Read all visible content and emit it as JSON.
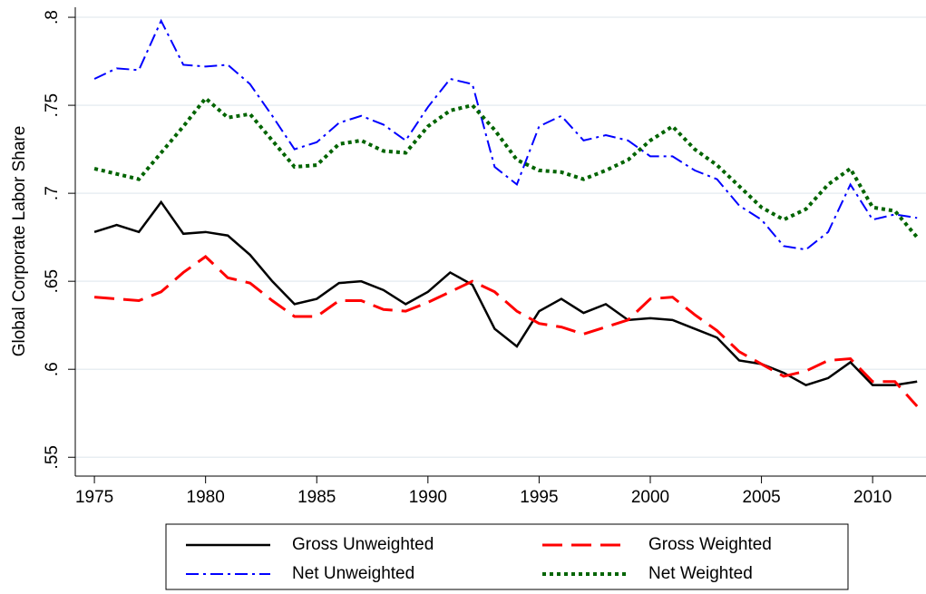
{
  "chart_data": {
    "type": "line",
    "y_label": "Global Corporate Labor Share",
    "x": [
      1975,
      1976,
      1977,
      1978,
      1979,
      1980,
      1981,
      1982,
      1983,
      1984,
      1985,
      1986,
      1987,
      1988,
      1989,
      1990,
      1991,
      1992,
      1993,
      1994,
      1995,
      1996,
      1997,
      1998,
      1999,
      2000,
      2001,
      2002,
      2003,
      2004,
      2005,
      2006,
      2007,
      2008,
      2009,
      2010,
      2011,
      2012
    ],
    "xlim": [
      1974.14,
      2012.4
    ],
    "xticks": [
      1975,
      1980,
      1985,
      1990,
      1995,
      2000,
      2005,
      2010
    ],
    "ylim": [
      0.5393,
      0.8057
    ],
    "yticks": [
      {
        "value": 0.55,
        "label": ".55"
      },
      {
        "value": 0.6,
        "label": ".6"
      },
      {
        "value": 0.65,
        "label": ".65"
      },
      {
        "value": 0.7,
        "label": ".7"
      },
      {
        "value": 0.75,
        "label": ".75"
      },
      {
        "value": 0.8,
        "label": ".8"
      }
    ],
    "grid": true,
    "series": [
      {
        "name": "Gross Unweighted",
        "color": "#000000",
        "line_style": "solid",
        "values": [
          0.678,
          0.682,
          0.678,
          0.695,
          0.677,
          0.678,
          0.676,
          0.665,
          0.65,
          0.637,
          0.64,
          0.649,
          0.65,
          0.645,
          0.637,
          0.644,
          0.655,
          0.648,
          0.623,
          0.613,
          0.633,
          0.64,
          0.632,
          0.637,
          0.628,
          0.629,
          0.628,
          0.623,
          0.618,
          0.605,
          0.603,
          0.598,
          0.591,
          0.595,
          0.604,
          0.591,
          0.591,
          0.593
        ]
      },
      {
        "name": "Gross Weighted",
        "color": "#ff0000",
        "line_style": "dash",
        "values": [
          0.641,
          0.64,
          0.639,
          0.644,
          0.655,
          0.664,
          0.652,
          0.649,
          0.639,
          0.63,
          0.63,
          0.639,
          0.639,
          0.634,
          0.633,
          0.638,
          0.644,
          0.65,
          0.644,
          0.633,
          0.626,
          0.624,
          0.62,
          0.624,
          0.628,
          0.64,
          0.641,
          0.631,
          0.622,
          0.61,
          0.603,
          0.596,
          0.599,
          0.605,
          0.606,
          0.593,
          0.593,
          0.579
        ]
      },
      {
        "name": "Net Unweighted",
        "color": "#0000ff",
        "line_style": "dash-dot",
        "values": [
          0.765,
          0.771,
          0.77,
          0.798,
          0.773,
          0.772,
          0.773,
          0.762,
          0.744,
          0.725,
          0.729,
          0.74,
          0.744,
          0.739,
          0.73,
          0.749,
          0.765,
          0.762,
          0.715,
          0.705,
          0.738,
          0.744,
          0.73,
          0.733,
          0.73,
          0.721,
          0.721,
          0.713,
          0.708,
          0.693,
          0.685,
          0.67,
          0.668,
          0.678,
          0.705,
          0.685,
          0.688,
          0.686
        ]
      },
      {
        "name": "Net Weighted",
        "color": "#006400",
        "line_style": "dot",
        "values": [
          0.714,
          0.711,
          0.708,
          0.723,
          0.738,
          0.754,
          0.743,
          0.745,
          0.73,
          0.715,
          0.716,
          0.728,
          0.73,
          0.724,
          0.723,
          0.738,
          0.747,
          0.75,
          0.736,
          0.719,
          0.713,
          0.712,
          0.708,
          0.713,
          0.719,
          0.73,
          0.738,
          0.725,
          0.716,
          0.704,
          0.692,
          0.685,
          0.691,
          0.705,
          0.714,
          0.692,
          0.69,
          0.675
        ]
      }
    ]
  }
}
